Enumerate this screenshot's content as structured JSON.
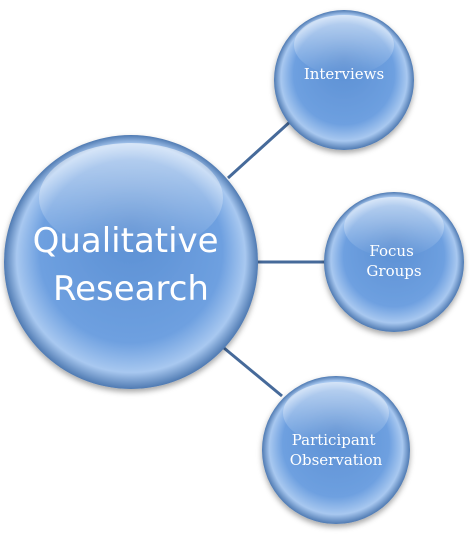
{
  "diagram": {
    "center": {
      "lines": [
        "Qualitative",
        "Research"
      ]
    },
    "satellites": [
      {
        "lines": [
          "Interviews"
        ]
      },
      {
        "lines": [
          "Focus",
          "Groups"
        ]
      },
      {
        "lines": [
          "Participant",
          "Observation"
        ]
      }
    ]
  },
  "colors": {
    "connector": "#466a9a",
    "node_fill": "#5b8fd3",
    "node_edge": "#4f7ab2",
    "text": "#ffffff"
  }
}
